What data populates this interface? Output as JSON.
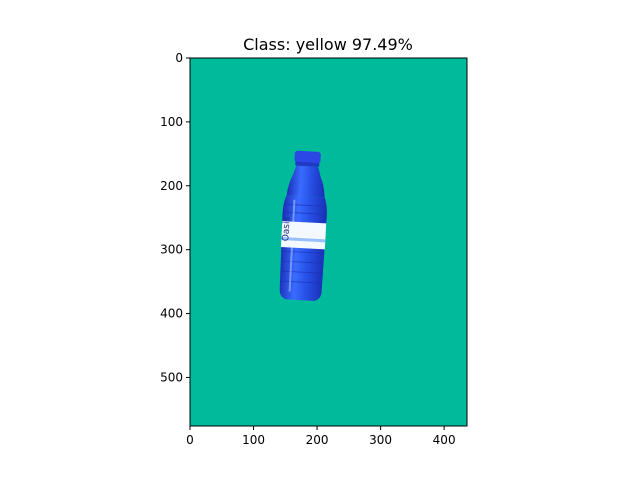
{
  "title": "Class: yellow 97.49%",
  "image": {
    "width": 436,
    "height": 576,
    "background": "#00BA9C",
    "object": "blue-plastic-water-bottle"
  },
  "axes": {
    "x_ticks": [
      "0",
      "100",
      "200",
      "300",
      "400"
    ],
    "y_ticks": [
      "0",
      "100",
      "200",
      "300",
      "400",
      "500"
    ]
  },
  "colors": {
    "bottle_dark": "#1A2FB5",
    "bottle_mid": "#2D5AF0",
    "bottle_light": "#5C8CFF",
    "cap": "#2B47E6",
    "label_bg": "#F4F8FF",
    "label_text": "#1A2E8A"
  },
  "bottle": {
    "label_brand": "Oasis"
  }
}
